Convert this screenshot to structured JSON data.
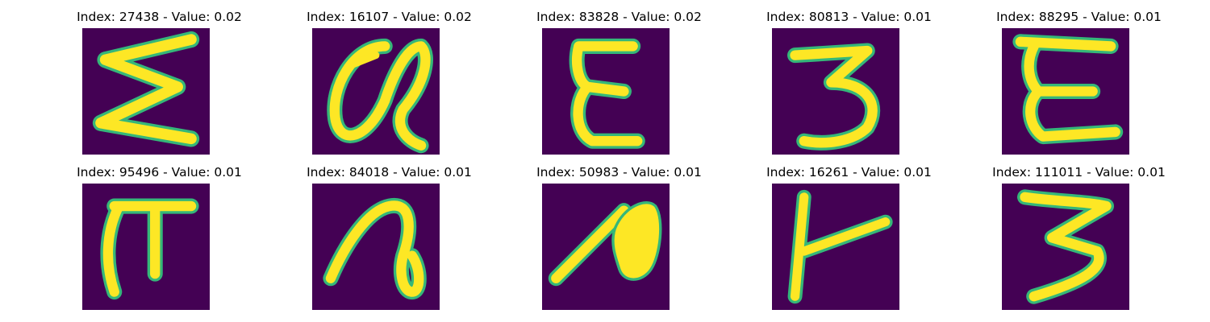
{
  "panels": [
    {
      "title": "Index: 27438 - Value: 0.02",
      "glyph": "sigma-glyph"
    },
    {
      "title": "Index: 16107 - Value: 0.02",
      "glyph": "alpha-glyph"
    },
    {
      "title": "Index: 83828 - Value: 0.02",
      "glyph": "epsilon-glyph"
    },
    {
      "title": "Index: 80813 - Value: 0.01",
      "glyph": "three-glyph"
    },
    {
      "title": "Index: 88295 - Value: 0.01",
      "glyph": "epsilon-glyph"
    },
    {
      "title": "Index: 95496 - Value: 0.01",
      "glyph": "pi-glyph"
    },
    {
      "title": "Index: 84018 - Value: 0.01",
      "glyph": "loop-glyph"
    },
    {
      "title": "Index: 50983 - Value: 0.01",
      "glyph": "blob-glyph"
    },
    {
      "title": "Index: 16261 - Value: 0.01",
      "glyph": "tee-glyph"
    },
    {
      "title": "Index: 111011 - Value: 0.01",
      "glyph": "three-glyph"
    }
  ],
  "colors": {
    "background": "#440154",
    "stroke": "#fde725",
    "edge": "#35b779"
  }
}
